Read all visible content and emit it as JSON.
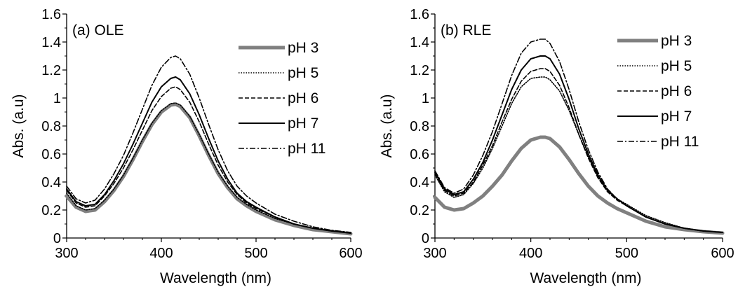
{
  "chart_data": [
    {
      "type": "line",
      "panel_label": "(a) OLE",
      "xlabel": "Wavelength (nm)",
      "ylabel": "Abs. (a.u)",
      "xlim": [
        300,
        600
      ],
      "ylim": [
        0,
        1.6
      ],
      "x_ticks": [
        "300",
        "400",
        "500",
        "600"
      ],
      "y_ticks": [
        "0",
        "0.2",
        "0.4",
        "0.6",
        "0.8",
        "1",
        "1.2",
        "1.4",
        "1.6"
      ],
      "grid": false,
      "legend_position": "top-right",
      "x": [
        300,
        310,
        320,
        330,
        340,
        350,
        360,
        370,
        380,
        390,
        400,
        410,
        415,
        420,
        430,
        440,
        450,
        460,
        470,
        480,
        490,
        500,
        520,
        540,
        560,
        580,
        600
      ],
      "series": [
        {
          "name": "pH 3",
          "color": "#808080",
          "style": "thick",
          "values": [
            0.3,
            0.22,
            0.19,
            0.2,
            0.26,
            0.34,
            0.44,
            0.56,
            0.69,
            0.81,
            0.9,
            0.95,
            0.955,
            0.94,
            0.86,
            0.73,
            0.59,
            0.46,
            0.36,
            0.28,
            0.23,
            0.19,
            0.13,
            0.09,
            0.06,
            0.045,
            0.03
          ]
        },
        {
          "name": "pH 5",
          "color": "#000000",
          "style": "dotted",
          "values": [
            0.32,
            0.23,
            0.2,
            0.21,
            0.27,
            0.35,
            0.45,
            0.57,
            0.7,
            0.82,
            0.91,
            0.96,
            0.965,
            0.95,
            0.87,
            0.74,
            0.6,
            0.47,
            0.37,
            0.29,
            0.24,
            0.2,
            0.14,
            0.1,
            0.07,
            0.05,
            0.035
          ]
        },
        {
          "name": "pH 6",
          "color": "#000000",
          "style": "dashed",
          "values": [
            0.34,
            0.25,
            0.22,
            0.23,
            0.3,
            0.39,
            0.5,
            0.63,
            0.77,
            0.91,
            1.01,
            1.07,
            1.08,
            1.06,
            0.97,
            0.83,
            0.67,
            0.52,
            0.4,
            0.31,
            0.25,
            0.21,
            0.15,
            0.1,
            0.07,
            0.05,
            0.035
          ]
        },
        {
          "name": "pH 7",
          "color": "#000000",
          "style": "solid",
          "values": [
            0.35,
            0.26,
            0.23,
            0.24,
            0.31,
            0.41,
            0.53,
            0.67,
            0.82,
            0.97,
            1.08,
            1.14,
            1.15,
            1.13,
            1.03,
            0.88,
            0.71,
            0.55,
            0.42,
            0.32,
            0.26,
            0.22,
            0.15,
            0.1,
            0.07,
            0.05,
            0.035
          ]
        },
        {
          "name": "pH 11",
          "color": "#000000",
          "style": "dashdot",
          "values": [
            0.37,
            0.28,
            0.25,
            0.27,
            0.35,
            0.46,
            0.59,
            0.75,
            0.92,
            1.09,
            1.22,
            1.29,
            1.3,
            1.28,
            1.17,
            1.0,
            0.81,
            0.63,
            0.48,
            0.37,
            0.3,
            0.25,
            0.17,
            0.12,
            0.08,
            0.055,
            0.04
          ]
        }
      ]
    },
    {
      "type": "line",
      "panel_label": "(b) RLE",
      "xlabel": "Wavelength (nm)",
      "ylabel": "Abs. (a.u)",
      "xlim": [
        300,
        600
      ],
      "ylim": [
        0,
        1.6
      ],
      "x_ticks": [
        "300",
        "400",
        "500",
        "600"
      ],
      "y_ticks": [
        "0",
        "0.2",
        "0.4",
        "0.6",
        "0.8",
        "1",
        "1.2",
        "1.4",
        "1.6"
      ],
      "grid": false,
      "legend_position": "top-right",
      "x": [
        300,
        310,
        320,
        330,
        340,
        350,
        360,
        370,
        380,
        390,
        400,
        410,
        415,
        420,
        430,
        440,
        450,
        460,
        470,
        480,
        490,
        500,
        520,
        540,
        560,
        580,
        600
      ],
      "series": [
        {
          "name": "pH 3",
          "color": "#808080",
          "style": "thick",
          "values": [
            0.29,
            0.22,
            0.2,
            0.21,
            0.25,
            0.3,
            0.37,
            0.45,
            0.55,
            0.64,
            0.7,
            0.72,
            0.72,
            0.71,
            0.65,
            0.56,
            0.46,
            0.37,
            0.3,
            0.25,
            0.21,
            0.18,
            0.12,
            0.08,
            0.06,
            0.045,
            0.035
          ]
        },
        {
          "name": "pH 5",
          "color": "#000000",
          "style": "dotted",
          "values": [
            0.45,
            0.33,
            0.29,
            0.31,
            0.39,
            0.5,
            0.64,
            0.8,
            0.96,
            1.08,
            1.14,
            1.15,
            1.15,
            1.13,
            1.05,
            0.91,
            0.74,
            0.58,
            0.44,
            0.34,
            0.28,
            0.24,
            0.16,
            0.11,
            0.07,
            0.05,
            0.04
          ]
        },
        {
          "name": "pH 6",
          "color": "#000000",
          "style": "dashed",
          "values": [
            0.46,
            0.34,
            0.3,
            0.32,
            0.4,
            0.52,
            0.66,
            0.83,
            0.99,
            1.12,
            1.19,
            1.21,
            1.21,
            1.19,
            1.09,
            0.93,
            0.74,
            0.57,
            0.43,
            0.33,
            0.27,
            0.23,
            0.15,
            0.1,
            0.07,
            0.05,
            0.04
          ]
        },
        {
          "name": "pH 7",
          "color": "#000000",
          "style": "solid",
          "values": [
            0.47,
            0.35,
            0.31,
            0.33,
            0.42,
            0.54,
            0.7,
            0.88,
            1.06,
            1.2,
            1.28,
            1.3,
            1.3,
            1.28,
            1.17,
            0.99,
            0.78,
            0.6,
            0.45,
            0.34,
            0.28,
            0.23,
            0.15,
            0.1,
            0.07,
            0.05,
            0.04
          ]
        },
        {
          "name": "pH 11",
          "color": "#000000",
          "style": "dashdot",
          "values": [
            0.48,
            0.36,
            0.32,
            0.35,
            0.45,
            0.59,
            0.76,
            0.96,
            1.16,
            1.32,
            1.4,
            1.42,
            1.42,
            1.39,
            1.26,
            1.06,
            0.83,
            0.63,
            0.47,
            0.35,
            0.28,
            0.23,
            0.15,
            0.1,
            0.07,
            0.05,
            0.04
          ]
        }
      ]
    }
  ]
}
